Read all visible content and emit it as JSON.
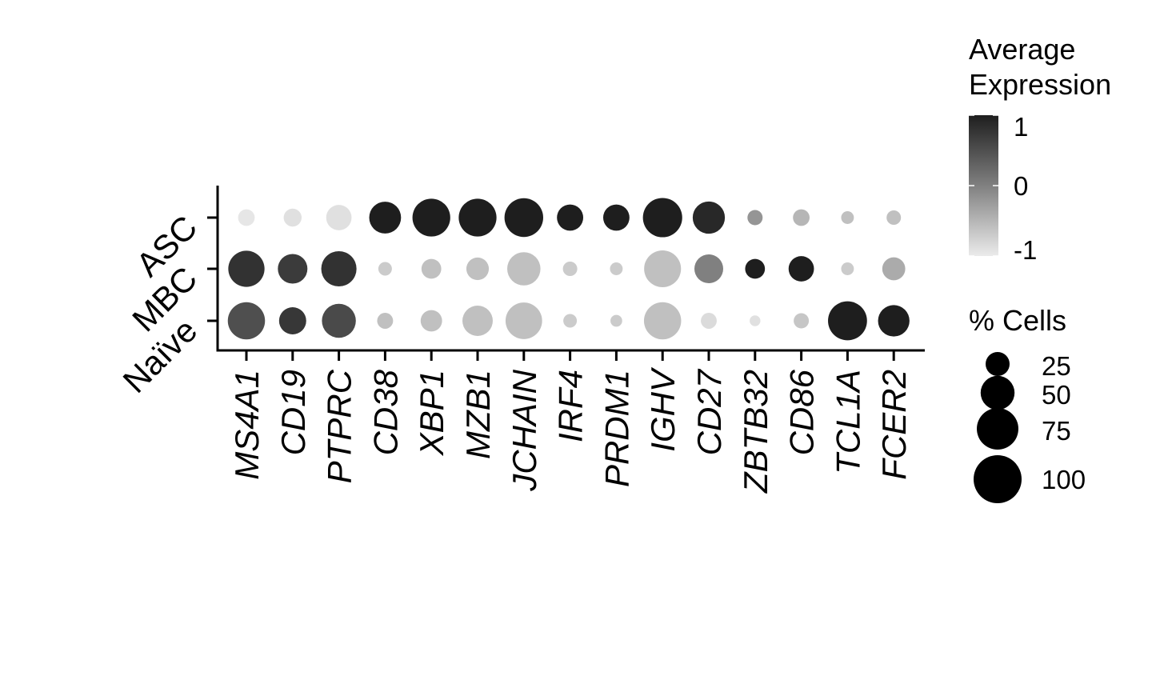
{
  "chart_data": {
    "type": "dot",
    "categories": [
      "MS4A1",
      "CD19",
      "PTPRC",
      "CD38",
      "XBP1",
      "MZB1",
      "JCHAIN",
      "IRF4",
      "PRDM1",
      "IGHV",
      "CD27",
      "ZBTB32",
      "CD86",
      "TCL1A",
      "FCER2"
    ],
    "groups": [
      "ASC",
      "MBC",
      "Naïve"
    ],
    "series": [
      {
        "name": "ASC",
        "pct": [
          12,
          14,
          28,
          44,
          62,
          62,
          65,
          30,
          30,
          67,
          45,
          10,
          12,
          7,
          9
        ],
        "avg_expression": [
          -0.95,
          -0.9,
          -0.9,
          1.0,
          1.0,
          1.0,
          1.0,
          1.0,
          1.0,
          1.0,
          0.9,
          -0.2,
          -0.5,
          -0.6,
          -0.6
        ]
      },
      {
        "name": "MBC",
        "pct": [
          57,
          38,
          54,
          8,
          17,
          22,
          48,
          9,
          7,
          59,
          36,
          17,
          28,
          7,
          23
        ],
        "avg_expression": [
          0.8,
          0.7,
          0.8,
          -0.7,
          -0.6,
          -0.6,
          -0.6,
          -0.7,
          -0.7,
          -0.6,
          0.0,
          1.0,
          1.0,
          -0.7,
          -0.4
        ]
      },
      {
        "name": "Naïve",
        "pct": [
          60,
          32,
          50,
          11,
          20,
          40,
          58,
          8,
          6,
          60,
          11,
          5,
          10,
          66,
          43
        ],
        "avg_expression": [
          0.5,
          0.75,
          0.55,
          -0.6,
          -0.6,
          -0.6,
          -0.6,
          -0.7,
          -0.7,
          -0.6,
          -0.85,
          -0.9,
          -0.65,
          1.0,
          1.0
        ]
      }
    ],
    "color_legend": {
      "title": "Average\nExpression",
      "ticks": [
        "1",
        "0",
        "-1"
      ],
      "range": [
        -1,
        1
      ],
      "low_color": "#ebebeb",
      "high_color": "#1e1e1e"
    },
    "size_legend": {
      "title": "% Cells",
      "ticks": [
        25,
        50,
        75,
        100
      ]
    },
    "legend_position": "right"
  }
}
